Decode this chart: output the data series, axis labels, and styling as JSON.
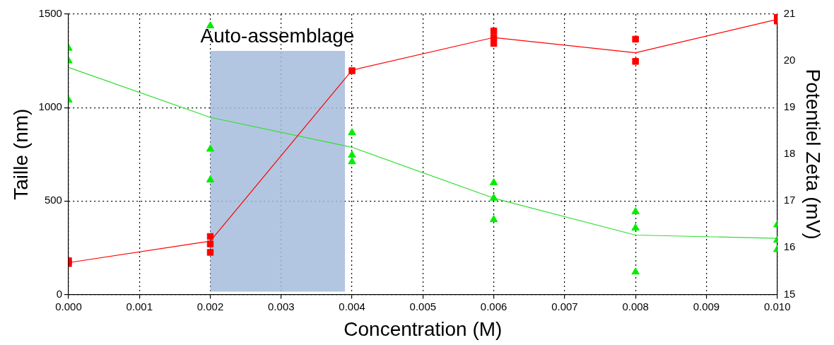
{
  "chart_data": {
    "type": "line",
    "xlabel": "Concentration (M)",
    "ylabel": "Taille (nm)",
    "y2label": "Potentiel Zeta (mV)",
    "x": [
      0,
      0.002,
      0.004,
      0.006,
      0.008,
      0.01
    ],
    "series": [
      {
        "color": "#ff0000",
        "marker": "none",
        "values": [
          170,
          285,
          1200,
          1375,
          1293,
          1472
        ]
      },
      {
        "type": "scatter",
        "color": "#ff0000",
        "marker": "square",
        "x": [
          0,
          0,
          0.002,
          0.002,
          0.002,
          0.004,
          0.006,
          0.006,
          0.006,
          0.008,
          0.008,
          0.01,
          0.01
        ],
        "values": [
          165,
          180,
          225,
          270,
          310,
          1197,
          1410,
          1375,
          1343,
          1366,
          1247,
          1490,
          1463
        ]
      },
      {
        "color": "#33dd33",
        "marker": "none",
        "axis": "y2",
        "values": [
          19.86,
          18.79,
          18.15,
          17.06,
          16.27,
          16.2
        ]
      },
      {
        "type": "scatter",
        "color": "#00ee00",
        "marker": "triangle",
        "axis": "y2",
        "x": [
          0,
          0,
          0,
          0.002,
          0.002,
          0.002,
          0.004,
          0.004,
          0.004,
          0.006,
          0.006,
          0.006,
          0.008,
          0.008,
          0.008,
          0.01,
          0.01,
          0.01
        ],
        "values": [
          20.27,
          20,
          19.16,
          20.75,
          18.11,
          17.45,
          18.46,
          17.98,
          17.84,
          17.39,
          17.06,
          16.6,
          16.77,
          16.42,
          15.48,
          16.49,
          16.16,
          15.96
        ]
      }
    ],
    "bands": [
      {
        "axis": "x",
        "from": 0.002,
        "to": 0.0039,
        "label": "Auto-assemblage",
        "color": "#a4bcdc"
      }
    ],
    "xlim": [
      0,
      0.01
    ],
    "xticks": [
      {
        "value": 0,
        "label": "0.000"
      },
      {
        "value": 0.001,
        "label": "0.001"
      },
      {
        "value": 0.002,
        "label": "0.002"
      },
      {
        "value": 0.003,
        "label": "0.003"
      },
      {
        "value": 0.004,
        "label": "0.004"
      },
      {
        "value": 0.005,
        "label": "0.005"
      },
      {
        "value": 0.006,
        "label": "0.006"
      },
      {
        "value": 0.007,
        "label": "0.007"
      },
      {
        "value": 0.008,
        "label": "0.008"
      },
      {
        "value": 0.009,
        "label": "0.009"
      },
      {
        "value": 0.01,
        "label": "0.010"
      }
    ],
    "ylim": [
      0,
      1500
    ],
    "yticks": [
      0,
      500,
      1000,
      1500
    ],
    "y2lim": [
      15,
      21
    ],
    "y2ticks": [
      15,
      16,
      17,
      18,
      19,
      20,
      21
    ],
    "grid": true,
    "legend": false
  }
}
